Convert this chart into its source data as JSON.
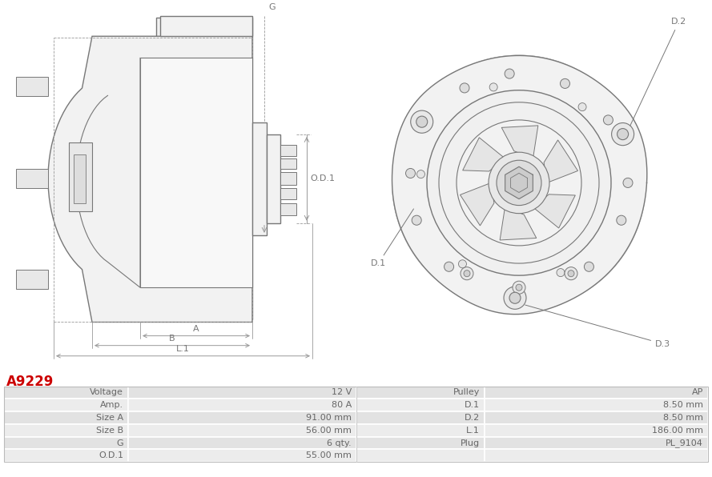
{
  "title": "A9229",
  "title_color": "#cc0000",
  "background_color": "#ffffff",
  "table_text_color": "#666666",
  "table_row_bg1": "#e2e2e2",
  "table_row_bg2": "#ececec",
  "rows": [
    [
      "Voltage",
      "12 V",
      "Pulley",
      "AP"
    ],
    [
      "Amp.",
      "80 A",
      "D.1",
      "8.50 mm"
    ],
    [
      "Size A",
      "91.00 mm",
      "D.2",
      "8.50 mm"
    ],
    [
      "Size B",
      "56.00 mm",
      "L.1",
      "186.00 mm"
    ],
    [
      "G",
      "6 qty.",
      "Plug",
      "PL_9104"
    ],
    [
      "O.D.1",
      "55.00 mm",
      "",
      ""
    ]
  ],
  "line_color": "#777777",
  "dim_color": "#999999",
  "fill_light": "#f2f2f2",
  "fill_med": "#e8e8e8"
}
